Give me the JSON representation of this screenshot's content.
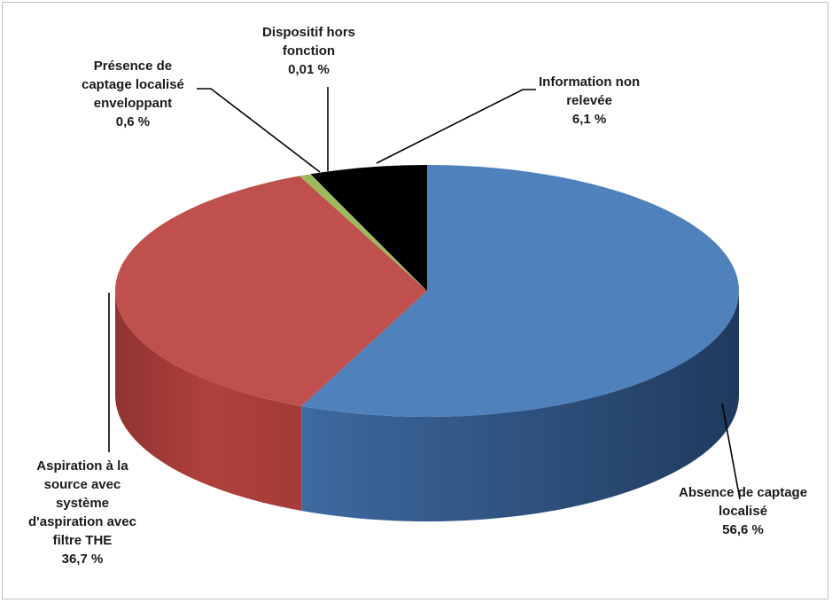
{
  "chart_data": {
    "type": "pie",
    "style": "3d",
    "legend": "none",
    "slices": [
      {
        "name_lines": [
          "Absence de captage",
          "localisé"
        ],
        "value": 56.6,
        "value_label": "56,6  %",
        "color": "#4f81bd"
      },
      {
        "name_lines": [
          "Aspiration à la",
          "source avec",
          "système",
          "d'aspiration avec",
          "filtre THE"
        ],
        "value": 36.7,
        "value_label": "36,7  %",
        "color": "#c0504d"
      },
      {
        "name_lines": [
          "Présence de",
          "captage localisé",
          "enveloppant"
        ],
        "value": 0.6,
        "value_label": "0,6  %",
        "color": "#9bbb59"
      },
      {
        "name_lines": [
          "Dispositif hors",
          "fonction"
        ],
        "value": 0.01,
        "value_label": "0,01 %",
        "color": "#f2f2f2"
      },
      {
        "name_lines": [
          "Information non",
          "relevée"
        ],
        "value": 6.1,
        "value_label": "6,1 %",
        "color": "#000000"
      }
    ]
  }
}
